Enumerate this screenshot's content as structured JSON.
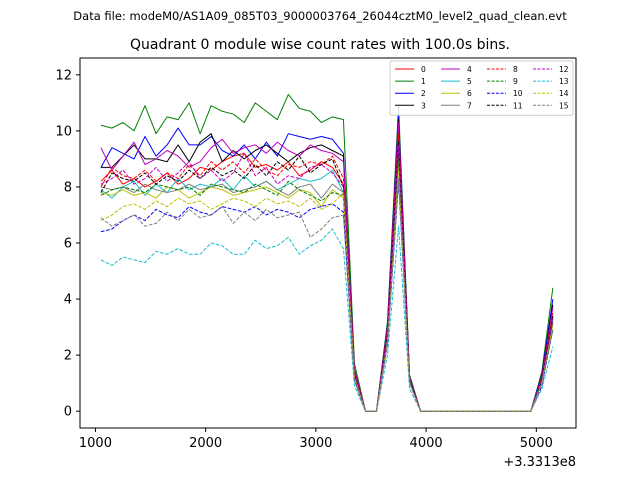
{
  "figure": {
    "suptitle": "Data file: modeM0/AS1A09_085T03_9000003764_26044cztM0_level2_quad_clean.evt"
  },
  "chart_data": {
    "type": "line",
    "title": "Quadrant 0 module wise count rates with 100.0s bins.",
    "xlabel": "",
    "ylabel": "",
    "x_offset_label": "+3.3313e8",
    "x_ticks": [
      1000,
      2000,
      3000,
      4000,
      5000
    ],
    "y_ticks": [
      0,
      2,
      4,
      6,
      8,
      10,
      12
    ],
    "xlim": [
      860,
      5360
    ],
    "ylim": [
      -0.6,
      12.6
    ],
    "legend_position": "top-right",
    "legend_columns": 4,
    "x": [
      1050,
      1150,
      1250,
      1350,
      1450,
      1550,
      1650,
      1750,
      1850,
      1950,
      2050,
      2150,
      2250,
      2350,
      2450,
      2550,
      2650,
      2750,
      2850,
      2950,
      3050,
      3150,
      3250,
      3350,
      3450,
      3550,
      3650,
      3750,
      3850,
      3950,
      4050,
      4150,
      4250,
      4350,
      4450,
      4550,
      4650,
      4750,
      4850,
      4950,
      5050,
      5150
    ],
    "series": [
      {
        "name": "0",
        "color": "#ff0000",
        "dash": "solid",
        "values": [
          8.2,
          8.6,
          8.1,
          8.3,
          8.0,
          8.2,
          8.5,
          8.1,
          8.3,
          8.7,
          8.6,
          8.9,
          9.1,
          9.2,
          8.7,
          8.8,
          8.6,
          8.9,
          8.4,
          8.6,
          8.9,
          8.7,
          8.1,
          1.3,
          0.0,
          0.0,
          2.8,
          9.8,
          1.2,
          0.0,
          0.0,
          0.0,
          0.0,
          0.0,
          0.0,
          0.0,
          0.0,
          0.0,
          0.0,
          0.0,
          1.1,
          3.4
        ]
      },
      {
        "name": "1",
        "color": "#008000",
        "dash": "solid",
        "values": [
          10.2,
          10.1,
          10.3,
          10.0,
          10.9,
          9.9,
          10.5,
          10.4,
          11.0,
          9.9,
          10.9,
          10.7,
          10.6,
          10.3,
          11.0,
          10.7,
          10.4,
          11.3,
          10.8,
          10.7,
          10.3,
          10.5,
          10.4,
          1.7,
          0.0,
          0.0,
          3.2,
          10.9,
          1.3,
          0.0,
          0.0,
          0.0,
          0.0,
          0.0,
          0.0,
          0.0,
          0.0,
          0.0,
          0.0,
          0.0,
          1.4,
          4.4
        ]
      },
      {
        "name": "2",
        "color": "#0000ff",
        "dash": "solid",
        "values": [
          8.7,
          9.4,
          9.2,
          9.0,
          9.8,
          9.1,
          9.5,
          10.1,
          9.5,
          9.5,
          9.8,
          9.3,
          9.1,
          9.5,
          9.0,
          9.6,
          9.1,
          9.9,
          9.8,
          9.7,
          9.8,
          9.7,
          9.2,
          1.5,
          0.0,
          0.0,
          3.1,
          10.6,
          1.2,
          0.0,
          0.0,
          0.0,
          0.0,
          0.0,
          0.0,
          0.0,
          0.0,
          0.0,
          0.0,
          0.0,
          1.3,
          4.0
        ]
      },
      {
        "name": "3",
        "color": "#000000",
        "dash": "solid",
        "values": [
          8.7,
          8.7,
          9.1,
          9.5,
          9.0,
          9.0,
          8.9,
          9.5,
          8.9,
          9.6,
          9.9,
          8.9,
          9.3,
          9.0,
          9.3,
          9.5,
          9.2,
          8.9,
          9.2,
          9.4,
          9.5,
          9.3,
          9.1,
          1.5,
          0.0,
          0.0,
          3.0,
          10.4,
          1.2,
          0.0,
          0.0,
          0.0,
          0.0,
          0.0,
          0.0,
          0.0,
          0.0,
          0.0,
          0.0,
          0.0,
          1.2,
          3.8
        ]
      },
      {
        "name": "4",
        "color": "#bf00bf",
        "dash": "solid",
        "values": [
          9.4,
          8.6,
          9.1,
          9.6,
          8.8,
          9.0,
          9.3,
          9.1,
          8.7,
          8.9,
          9.4,
          9.7,
          9.2,
          9.4,
          9.5,
          9.2,
          9.6,
          9.3,
          9.1,
          9.5,
          9.3,
          9.2,
          8.9,
          1.5,
          0.0,
          0.0,
          3.0,
          10.3,
          1.2,
          0.0,
          0.0,
          0.0,
          0.0,
          0.0,
          0.0,
          0.0,
          0.0,
          0.0,
          0.0,
          0.0,
          1.2,
          3.7
        ]
      },
      {
        "name": "5",
        "color": "#17becf",
        "dash": "solid",
        "values": [
          7.9,
          7.6,
          8.0,
          8.2,
          7.7,
          8.1,
          7.8,
          8.3,
          7.9,
          8.1,
          8.0,
          8.3,
          7.9,
          8.4,
          8.0,
          8.2,
          7.9,
          8.1,
          8.3,
          8.2,
          8.3,
          8.6,
          7.8,
          1.3,
          0.0,
          0.0,
          2.7,
          9.3,
          1.1,
          0.0,
          0.0,
          0.0,
          0.0,
          0.0,
          0.0,
          0.0,
          0.0,
          0.0,
          0.0,
          0.0,
          1.1,
          3.3
        ]
      },
      {
        "name": "6",
        "color": "#bfbf00",
        "dash": "solid",
        "values": [
          7.8,
          7.7,
          7.9,
          7.7,
          7.8,
          7.6,
          8.0,
          7.9,
          7.6,
          7.8,
          8.0,
          7.9,
          7.7,
          7.8,
          7.9,
          8.0,
          7.8,
          7.6,
          7.9,
          7.8,
          7.3,
          7.9,
          7.6,
          1.2,
          0.0,
          0.0,
          2.6,
          9.0,
          1.1,
          0.0,
          0.0,
          0.0,
          0.0,
          0.0,
          0.0,
          0.0,
          0.0,
          0.0,
          0.0,
          0.0,
          1.0,
          3.1
        ]
      },
      {
        "name": "7",
        "color": "#7f7f7f",
        "dash": "solid",
        "values": [
          8.0,
          7.9,
          8.0,
          7.8,
          8.1,
          7.9,
          7.8,
          7.9,
          8.1,
          7.9,
          8.0,
          8.1,
          7.8,
          7.9,
          8.0,
          8.2,
          7.9,
          7.7,
          8.0,
          8.1,
          7.6,
          8.1,
          7.8,
          1.3,
          0.0,
          0.0,
          2.7,
          9.2,
          1.1,
          0.0,
          0.0,
          0.0,
          0.0,
          0.0,
          0.0,
          0.0,
          0.0,
          0.0,
          0.0,
          0.0,
          1.1,
          3.2
        ]
      },
      {
        "name": "8",
        "color": "#ff0000",
        "dash": "dashed",
        "values": [
          8.0,
          8.7,
          8.4,
          8.3,
          8.6,
          8.2,
          8.5,
          8.3,
          8.8,
          8.4,
          8.9,
          8.6,
          8.9,
          8.5,
          9.0,
          8.6,
          8.4,
          8.8,
          8.7,
          8.9,
          8.8,
          9.1,
          8.3,
          1.4,
          0.0,
          0.0,
          2.9,
          9.9,
          1.2,
          0.0,
          0.0,
          0.0,
          0.0,
          0.0,
          0.0,
          0.0,
          0.0,
          0.0,
          0.0,
          0.0,
          1.2,
          3.5
        ]
      },
      {
        "name": "9",
        "color": "#008000",
        "dash": "dashed",
        "values": [
          7.7,
          7.9,
          8.0,
          7.9,
          7.8,
          8.1,
          8.0,
          7.9,
          8.0,
          7.7,
          8.1,
          8.0,
          7.9,
          7.8,
          8.1,
          7.9,
          7.7,
          8.2,
          7.9,
          7.7,
          7.5,
          7.8,
          7.7,
          1.3,
          0.0,
          0.0,
          2.7,
          9.1,
          1.1,
          0.0,
          0.0,
          0.0,
          0.0,
          0.0,
          0.0,
          0.0,
          0.0,
          0.0,
          0.0,
          0.0,
          1.1,
          3.2
        ]
      },
      {
        "name": "10",
        "color": "#0000ff",
        "dash": "dashed",
        "values": [
          6.4,
          6.5,
          6.8,
          7.0,
          6.8,
          7.2,
          7.0,
          6.9,
          7.3,
          7.1,
          7.0,
          7.3,
          7.2,
          7.1,
          7.3,
          7.0,
          7.2,
          7.1,
          6.9,
          7.2,
          7.3,
          7.4,
          7.1,
          1.1,
          0.0,
          0.0,
          2.4,
          8.2,
          1.0,
          0.0,
          0.0,
          0.0,
          0.0,
          0.0,
          0.0,
          0.0,
          0.0,
          0.0,
          0.0,
          0.0,
          0.9,
          2.9
        ]
      },
      {
        "name": "11",
        "color": "#000000",
        "dash": "dashed",
        "values": [
          7.8,
          8.5,
          8.3,
          8.2,
          8.5,
          8.1,
          8.4,
          8.2,
          8.6,
          8.3,
          8.7,
          8.4,
          8.6,
          8.3,
          8.8,
          8.4,
          8.9,
          8.6,
          9.1,
          8.5,
          8.8,
          9.0,
          8.0,
          1.3,
          0.0,
          0.0,
          2.8,
          9.6,
          1.2,
          0.0,
          0.0,
          0.0,
          0.0,
          0.0,
          0.0,
          0.0,
          0.0,
          0.0,
          0.0,
          0.0,
          1.1,
          3.4
        ]
      },
      {
        "name": "12",
        "color": "#bf00bf",
        "dash": "dashed",
        "values": [
          8.1,
          8.3,
          8.6,
          8.1,
          8.3,
          8.7,
          8.2,
          8.5,
          8.9,
          8.3,
          8.6,
          8.2,
          8.5,
          9.2,
          8.4,
          8.7,
          8.1,
          8.4,
          8.3,
          8.7,
          8.8,
          8.5,
          8.0,
          1.3,
          0.0,
          0.0,
          2.8,
          9.5,
          1.2,
          0.0,
          0.0,
          0.0,
          0.0,
          0.0,
          0.0,
          0.0,
          0.0,
          0.0,
          0.0,
          0.0,
          1.1,
          3.3
        ]
      },
      {
        "name": "13",
        "color": "#17becf",
        "dash": "dashed",
        "values": [
          5.4,
          5.2,
          5.5,
          5.4,
          5.3,
          5.7,
          5.6,
          5.8,
          5.6,
          5.6,
          6.0,
          5.9,
          5.6,
          5.6,
          6.1,
          5.8,
          5.9,
          6.2,
          5.6,
          5.9,
          6.1,
          6.5,
          5.8,
          0.9,
          0.0,
          0.0,
          2.0,
          6.6,
          0.8,
          0.0,
          0.0,
          0.0,
          0.0,
          0.0,
          0.0,
          0.0,
          0.0,
          0.0,
          0.0,
          0.0,
          0.8,
          2.3
        ]
      },
      {
        "name": "14",
        "color": "#bfbf00",
        "dash": "dashed",
        "values": [
          6.8,
          7.0,
          7.3,
          7.4,
          7.2,
          7.5,
          7.3,
          7.6,
          7.4,
          7.5,
          7.2,
          7.4,
          7.6,
          7.5,
          7.3,
          7.6,
          7.4,
          7.5,
          7.3,
          7.6,
          7.2,
          7.4,
          7.8,
          1.2,
          0.0,
          0.0,
          2.5,
          8.5,
          1.0,
          0.0,
          0.0,
          0.0,
          0.0,
          0.0,
          0.0,
          0.0,
          0.0,
          0.0,
          0.0,
          0.0,
          1.0,
          3.0
        ]
      },
      {
        "name": "15",
        "color": "#7f7f7f",
        "dash": "dashed",
        "values": [
          6.9,
          6.6,
          6.8,
          7.0,
          6.6,
          6.7,
          7.1,
          6.8,
          7.2,
          6.9,
          7.0,
          7.3,
          6.7,
          7.1,
          6.8,
          7.2,
          6.9,
          7.0,
          7.1,
          6.2,
          6.5,
          6.9,
          7.0,
          1.1,
          0.0,
          0.0,
          2.4,
          8.3,
          1.0,
          0.0,
          0.0,
          0.0,
          0.0,
          0.0,
          0.0,
          0.0,
          0.0,
          0.0,
          0.0,
          0.0,
          1.0,
          2.9
        ]
      }
    ]
  }
}
